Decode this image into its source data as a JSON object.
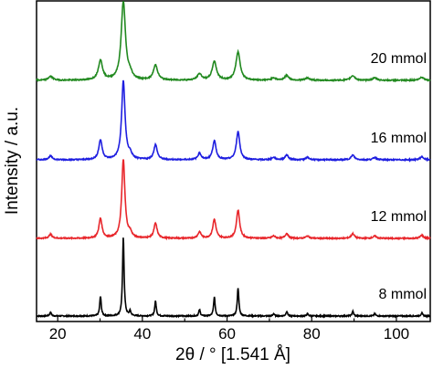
{
  "chart_data": {
    "type": "line",
    "xlabel": "2θ / ° [1.541 Å]",
    "ylabel": "Intensity / a.u.",
    "xlim": [
      15,
      108
    ],
    "xticks": [
      20,
      40,
      60,
      80,
      100
    ],
    "grid": false,
    "legend": "none",
    "baseline_noise": 0.01,
    "peaks": [
      {
        "x": 18.3,
        "y": 0.05
      },
      {
        "x": 30.1,
        "y": 0.25
      },
      {
        "x": 35.5,
        "y": 1.0
      },
      {
        "x": 37.1,
        "y": 0.06
      },
      {
        "x": 43.1,
        "y": 0.19
      },
      {
        "x": 53.5,
        "y": 0.08
      },
      {
        "x": 57.0,
        "y": 0.24
      },
      {
        "x": 62.6,
        "y": 0.36
      },
      {
        "x": 71.0,
        "y": 0.03
      },
      {
        "x": 74.1,
        "y": 0.06
      },
      {
        "x": 79.0,
        "y": 0.03
      },
      {
        "x": 89.7,
        "y": 0.06
      },
      {
        "x": 94.9,
        "y": 0.03
      },
      {
        "x": 106.0,
        "y": 0.04
      }
    ],
    "series": [
      {
        "name": "8 mmol",
        "label": "8 mmol",
        "color": "#000000",
        "offset": 0,
        "peak_width": 0.22
      },
      {
        "name": "12 mmol",
        "label": "12 mmol",
        "color": "#e8262b",
        "offset": 1,
        "peak_width": 0.45
      },
      {
        "name": "16 mmol",
        "label": "16 mmol",
        "color": "#1e1ee0",
        "offset": 2,
        "peak_width": 0.48
      },
      {
        "name": "20 mmol",
        "label": "20 mmol",
        "color": "#21891f",
        "offset": 3,
        "peak_width": 0.6
      }
    ]
  }
}
